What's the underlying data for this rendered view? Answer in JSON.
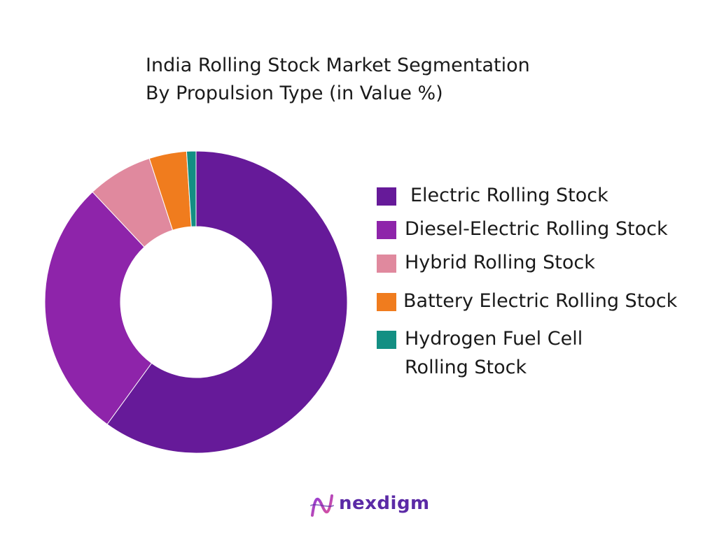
{
  "title": {
    "line1": "India Rolling Stock Market Segmentation",
    "line2": "By Propulsion Type (in Value %)"
  },
  "chart_data": {
    "type": "pie",
    "hole": true,
    "categories": [
      "Electric Rolling Stock",
      "Diesel-Electric Rolling Stock",
      "Hybrid Rolling Stock",
      "Battery Electric Rolling Stock",
      "Hydrogen Fuel Cell Rolling Stock"
    ],
    "values": [
      60,
      28,
      7,
      4,
      1
    ],
    "colors": [
      "#661a99",
      "#8e24aa",
      "#e0899e",
      "#f07c1e",
      "#138f83"
    ],
    "legend_position": "right"
  },
  "legend": {
    "items": [
      {
        "line1": "Electric Rolling Stock",
        "line2": ""
      },
      {
        "line1": "Diesel-Electric Rolling Stock",
        "line2": ""
      },
      {
        "line1": "Hybrid Rolling Stock",
        "line2": ""
      },
      {
        "line1": "Battery Electric Rolling Stock",
        "line2": ""
      },
      {
        "line1": "Hydrogen Fuel Cell",
        "line2": "Rolling Stock"
      }
    ]
  },
  "logo": {
    "text": "nexdigm",
    "color": "#5b2aa6"
  }
}
